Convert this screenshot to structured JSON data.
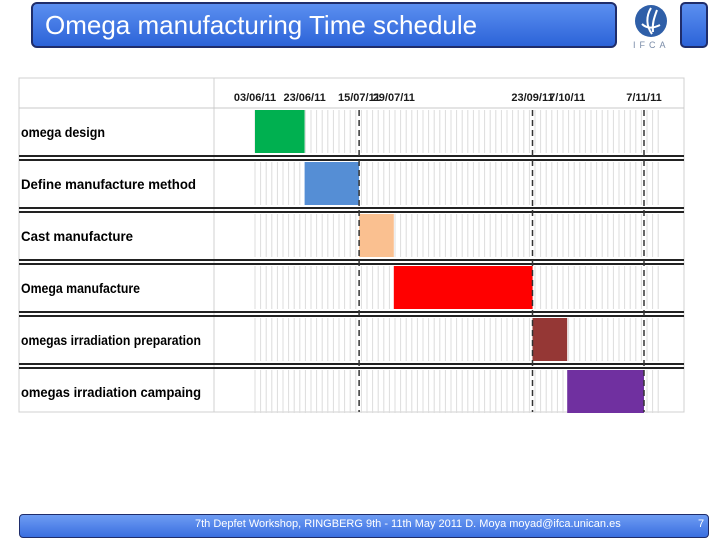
{
  "header": {
    "title": "Omega manufacturing Time schedule",
    "logo_text": "IFCA"
  },
  "footer": {
    "text": "7th Depfet Workshop, RINGBERG 9th - 11th May 2011 D. Moya moyad@ifca.unican.es",
    "page": "7"
  },
  "chart_data": {
    "type": "gantt",
    "date_labels": [
      "03/06/11",
      "23/06/11",
      "15/07/11",
      "29/07/11",
      "23/09/11",
      "7/10/11",
      "7/11/11"
    ],
    "tasks": [
      {
        "label": "omega design",
        "start": "03/06/11",
        "end": "23/06/11",
        "color": "#00b050"
      },
      {
        "label": "Define manufacture method",
        "start": "23/06/11",
        "end": "15/07/11",
        "color": "#558ed5"
      },
      {
        "label": "Cast manufacture",
        "start": "15/07/11",
        "end": "29/07/11",
        "color": "#fac090"
      },
      {
        "label": "Omega manufacture",
        "start": "29/07/11",
        "end": "23/09/11",
        "color": "#ff0000"
      },
      {
        "label": "omegas irradiation preparation",
        "start": "23/09/11",
        "end": "7/10/11",
        "color": "#953735"
      },
      {
        "label": "omegas irradiation campaing",
        "start": "7/10/11",
        "end": "7/11/11",
        "color": "#7030a0"
      }
    ],
    "dashed_markers": [
      "15/07/11",
      "23/09/11",
      "7/11/11"
    ],
    "grid": true
  }
}
